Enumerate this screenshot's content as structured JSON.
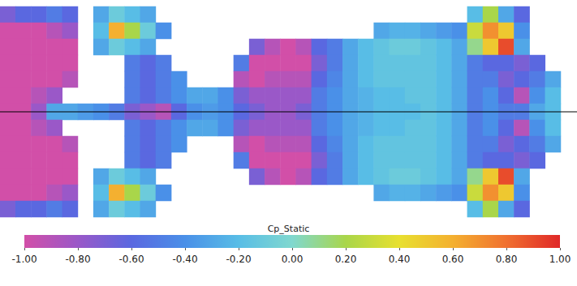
{
  "chart_data": {
    "type": "heatmap",
    "cells": [
      [
        -0.7,
        -1,
        -1,
        -1,
        -1,
        -1,
        -1,
        -1,
        -1,
        -1,
        -1,
        -1,
        -0.7
      ],
      [
        -0.6,
        -1,
        -1,
        -1,
        -1,
        -1,
        -1,
        -1,
        -1,
        -1,
        -1,
        -1,
        -0.6
      ],
      [
        -0.6,
        -1,
        -1,
        -1,
        -1,
        -0.9,
        -0.8,
        -0.9,
        -1,
        -1,
        -1,
        -1,
        -0.6
      ],
      [
        -0.5,
        -0.9,
        -1,
        -1,
        -1,
        -0.8,
        -0.3,
        -0.8,
        -1,
        -1,
        -1,
        -0.9,
        -0.5
      ],
      [
        -0.6,
        -0.8,
        -1,
        -1,
        -0.9,
        null,
        -0.3,
        null,
        -0.9,
        -1,
        -1,
        -0.8,
        -0.6
      ],
      [
        null,
        null,
        null,
        null,
        null,
        null,
        -0.35,
        null,
        null,
        null,
        null,
        null,
        null
      ],
      [
        -0.3,
        -0.2,
        -0.3,
        null,
        null,
        null,
        -0.4,
        null,
        null,
        null,
        -0.3,
        -0.2,
        -0.3
      ],
      [
        -0.1,
        0.6,
        -0.1,
        null,
        null,
        null,
        -0.5,
        null,
        null,
        null,
        -0.1,
        0.6,
        -0.1
      ],
      [
        -0.2,
        0.2,
        -0.2,
        -0.5,
        -0.5,
        -0.5,
        -0.7,
        -0.5,
        -0.5,
        -0.5,
        -0.2,
        0.2,
        -0.2
      ],
      [
        -0.3,
        -0.1,
        -0.3,
        -0.6,
        -0.6,
        -0.6,
        -0.8,
        -0.6,
        -0.6,
        -0.6,
        -0.3,
        -0.1,
        -0.3
      ],
      [
        null,
        -0.4,
        null,
        -0.5,
        -0.5,
        -0.5,
        -0.9,
        -0.5,
        -0.5,
        -0.5,
        null,
        -0.4,
        null
      ],
      [
        null,
        null,
        null,
        null,
        -0.4,
        -0.4,
        -0.6,
        -0.4,
        -0.4,
        null,
        null,
        null,
        null
      ],
      [
        null,
        null,
        null,
        null,
        null,
        -0.3,
        -0.4,
        -0.3,
        null,
        null,
        null,
        null,
        null
      ],
      [
        null,
        null,
        null,
        null,
        null,
        -0.3,
        -0.35,
        -0.3,
        null,
        null,
        null,
        null,
        null
      ],
      [
        null,
        null,
        null,
        null,
        null,
        -0.4,
        -0.4,
        -0.4,
        null,
        null,
        null,
        null,
        null
      ],
      [
        null,
        null,
        null,
        -0.5,
        -0.9,
        -0.7,
        -0.6,
        -0.7,
        -0.9,
        -0.5,
        null,
        null,
        null
      ],
      [
        null,
        null,
        -0.7,
        -1,
        -1,
        -0.8,
        -0.7,
        -0.8,
        -1,
        -1,
        -0.7,
        null,
        null
      ],
      [
        null,
        null,
        -0.9,
        -1,
        -0.9,
        -0.8,
        -0.8,
        -0.8,
        -0.9,
        -1,
        -0.9,
        null,
        null
      ],
      [
        null,
        null,
        -1,
        -1,
        -0.9,
        -0.8,
        -0.8,
        -0.8,
        -0.9,
        -1,
        -1,
        null,
        null
      ],
      [
        null,
        null,
        -0.9,
        -1,
        -0.9,
        -0.8,
        -0.7,
        -0.8,
        -0.9,
        -1,
        -0.9,
        null,
        null
      ],
      [
        null,
        null,
        -0.6,
        -0.7,
        -0.6,
        -0.5,
        -0.5,
        -0.5,
        -0.6,
        -0.7,
        -0.6,
        null,
        null
      ],
      [
        null,
        null,
        -0.5,
        -0.5,
        -0.45,
        -0.4,
        -0.4,
        -0.4,
        -0.45,
        -0.5,
        -0.5,
        null,
        null
      ],
      [
        null,
        null,
        -0.3,
        -0.3,
        -0.3,
        -0.3,
        -0.3,
        -0.3,
        -0.3,
        -0.3,
        -0.3,
        null,
        null
      ],
      [
        null,
        null,
        -0.2,
        -0.2,
        -0.2,
        -0.25,
        -0.25,
        -0.25,
        -0.2,
        -0.2,
        -0.2,
        null,
        null
      ],
      [
        null,
        -0.3,
        -0.15,
        -0.15,
        -0.15,
        -0.2,
        -0.2,
        -0.2,
        -0.15,
        -0.15,
        -0.15,
        -0.3,
        null
      ],
      [
        null,
        -0.25,
        -0.1,
        -0.15,
        -0.15,
        -0.2,
        -0.2,
        -0.2,
        -0.15,
        -0.15,
        -0.1,
        -0.25,
        null
      ],
      [
        null,
        -0.25,
        -0.1,
        -0.15,
        -0.15,
        -0.15,
        -0.2,
        -0.15,
        -0.15,
        -0.15,
        -0.1,
        -0.25,
        null
      ],
      [
        null,
        -0.3,
        -0.15,
        -0.15,
        -0.15,
        -0.15,
        -0.15,
        -0.15,
        -0.15,
        -0.15,
        -0.15,
        -0.3,
        null
      ],
      [
        null,
        -0.35,
        -0.2,
        -0.2,
        -0.2,
        -0.2,
        -0.2,
        -0.2,
        -0.2,
        -0.2,
        -0.2,
        -0.35,
        null
      ],
      [
        null,
        -0.4,
        -0.3,
        -0.3,
        -0.3,
        -0.3,
        -0.3,
        -0.3,
        -0.3,
        -0.3,
        -0.3,
        -0.4,
        null
      ],
      [
        -0.2,
        0.3,
        0.1,
        -0.5,
        -0.5,
        -0.5,
        -0.5,
        -0.5,
        -0.5,
        -0.5,
        0.1,
        0.3,
        -0.2
      ],
      [
        0.2,
        0.7,
        0.5,
        -0.6,
        -0.5,
        -0.4,
        -0.4,
        -0.4,
        -0.5,
        -0.6,
        0.5,
        0.7,
        0.2
      ],
      [
        -0.3,
        0.5,
        0.9,
        -0.6,
        -0.7,
        -0.6,
        -0.5,
        -0.6,
        -0.7,
        -0.6,
        0.9,
        0.5,
        -0.3
      ],
      [
        -0.6,
        -0.4,
        -0.3,
        -0.7,
        -0.6,
        -0.9,
        -0.5,
        -0.9,
        -0.6,
        -0.7,
        -0.3,
        -0.4,
        -0.6
      ],
      [
        null,
        null,
        null,
        -0.6,
        -0.5,
        -0.4,
        -0.3,
        -0.4,
        -0.5,
        -0.6,
        null,
        null,
        null
      ],
      [
        null,
        null,
        null,
        null,
        -0.3,
        -0.2,
        -0.2,
        -0.2,
        -0.3,
        null,
        null,
        null,
        null
      ]
    ],
    "colorbar_title": "Cp_Static",
    "colorbar_range": [
      -1,
      1
    ],
    "colorbar_ticks": [
      {
        "value": -1,
        "label": "-1.00"
      },
      {
        "value": -0.8,
        "label": "-0.80"
      },
      {
        "value": -0.6,
        "label": "-0.60"
      },
      {
        "value": -0.4,
        "label": "-0.40"
      },
      {
        "value": -0.2,
        "label": "-0.20"
      },
      {
        "value": 0,
        "label": "0.00"
      },
      {
        "value": 0.2,
        "label": "0.20"
      },
      {
        "value": 0.4,
        "label": "0.40"
      },
      {
        "value": 0.6,
        "label": "0.60"
      },
      {
        "value": 0.8,
        "label": "0.80"
      },
      {
        "value": 1,
        "label": "1.00"
      }
    ],
    "tick_labels": false
  }
}
